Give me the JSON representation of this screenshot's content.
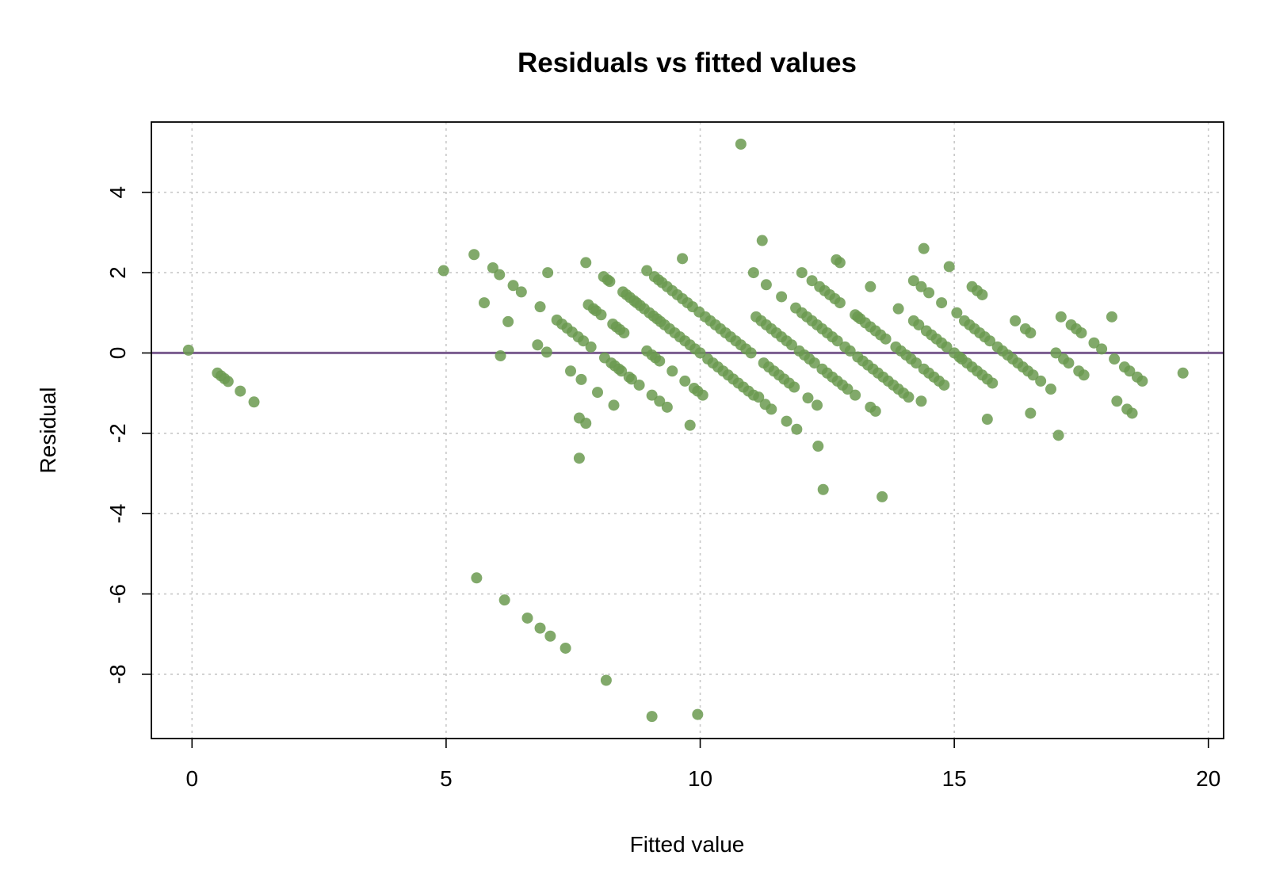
{
  "chart_data": {
    "type": "scatter",
    "title": "Residuals vs fitted values",
    "xlabel": "Fitted value",
    "ylabel": "Residual",
    "xlim": [
      -0.8,
      20.3
    ],
    "ylim": [
      -9.6,
      5.75
    ],
    "xticks": [
      0,
      5,
      10,
      15,
      20
    ],
    "yticks": [
      -8,
      -6,
      -4,
      -2,
      0,
      2,
      4
    ],
    "grid": true,
    "point_color": "#6b9a50",
    "reference_line": {
      "y": 0,
      "color": "#7a5c8f"
    },
    "points": [
      [
        -0.07,
        0.07
      ],
      [
        0.5,
        -0.5
      ],
      [
        0.57,
        -0.57
      ],
      [
        0.64,
        -0.64
      ],
      [
        0.71,
        -0.71
      ],
      [
        0.95,
        -0.95
      ],
      [
        1.22,
        -1.22
      ],
      [
        4.95,
        2.05
      ],
      [
        5.55,
        2.45
      ],
      [
        5.75,
        1.25
      ],
      [
        5.92,
        2.12
      ],
      [
        6.05,
        1.95
      ],
      [
        6.07,
        -0.07
      ],
      [
        6.22,
        0.78
      ],
      [
        6.32,
        1.68
      ],
      [
        6.48,
        1.52
      ],
      [
        6.8,
        0.2
      ],
      [
        6.85,
        1.15
      ],
      [
        6.98,
        0.02
      ],
      [
        7.0,
        2.0
      ],
      [
        7.18,
        0.82
      ],
      [
        7.28,
        0.72
      ],
      [
        7.38,
        0.62
      ],
      [
        7.45,
        -0.45
      ],
      [
        7.48,
        0.52
      ],
      [
        7.6,
        0.4
      ],
      [
        7.62,
        -1.62
      ],
      [
        7.62,
        -2.62
      ],
      [
        7.66,
        -0.66
      ],
      [
        7.7,
        0.3
      ],
      [
        7.75,
        2.25
      ],
      [
        7.75,
        -1.75
      ],
      [
        7.8,
        1.2
      ],
      [
        7.85,
        0.15
      ],
      [
        7.9,
        1.1
      ],
      [
        7.95,
        1.05
      ],
      [
        7.98,
        -0.98
      ],
      [
        8.05,
        0.95
      ],
      [
        8.1,
        1.9
      ],
      [
        8.12,
        -0.12
      ],
      [
        8.18,
        1.82
      ],
      [
        8.22,
        1.78
      ],
      [
        8.25,
        -0.25
      ],
      [
        8.28,
        0.72
      ],
      [
        8.3,
        -1.3
      ],
      [
        8.32,
        -0.32
      ],
      [
        8.35,
        0.65
      ],
      [
        8.4,
        -0.4
      ],
      [
        8.42,
        0.58
      ],
      [
        8.45,
        -0.45
      ],
      [
        8.48,
        1.52
      ],
      [
        8.5,
        0.5
      ],
      [
        8.55,
        1.45
      ],
      [
        8.6,
        -0.6
      ],
      [
        8.62,
        1.38
      ],
      [
        8.65,
        -0.65
      ],
      [
        8.7,
        1.3
      ],
      [
        8.75,
        1.25
      ],
      [
        8.8,
        -0.8
      ],
      [
        8.82,
        1.18
      ],
      [
        8.9,
        1.1
      ],
      [
        8.95,
        2.05
      ],
      [
        8.95,
        0.05
      ],
      [
        9.0,
        1.0
      ],
      [
        9.05,
        -1.05
      ],
      [
        9.05,
        -0.05
      ],
      [
        9.08,
        0.92
      ],
      [
        9.1,
        1.9
      ],
      [
        9.12,
        -0.12
      ],
      [
        9.15,
        0.85
      ],
      [
        9.18,
        1.82
      ],
      [
        9.2,
        -0.2
      ],
      [
        9.2,
        -1.2
      ],
      [
        9.22,
        0.78
      ],
      [
        9.25,
        1.75
      ],
      [
        9.3,
        0.7
      ],
      [
        9.35,
        1.65
      ],
      [
        9.35,
        -1.35
      ],
      [
        9.4,
        0.6
      ],
      [
        9.45,
        -0.45
      ],
      [
        9.45,
        1.55
      ],
      [
        9.5,
        0.5
      ],
      [
        9.55,
        1.45
      ],
      [
        9.6,
        0.4
      ],
      [
        9.65,
        2.35
      ],
      [
        9.65,
        1.35
      ],
      [
        9.7,
        0.3
      ],
      [
        9.7,
        -0.7
      ],
      [
        9.75,
        1.25
      ],
      [
        9.8,
        -1.8
      ],
      [
        9.8,
        0.2
      ],
      [
        9.85,
        1.15
      ],
      [
        9.88,
        -0.88
      ],
      [
        9.9,
        0.1
      ],
      [
        9.95,
        -0.95
      ],
      [
        9.95,
        -9.0
      ],
      [
        9.98,
        1.02
      ],
      [
        10.0,
        0.0
      ],
      [
        10.05,
        -1.05
      ],
      [
        10.1,
        0.9
      ],
      [
        10.15,
        -0.15
      ],
      [
        10.2,
        0.8
      ],
      [
        10.25,
        -0.25
      ],
      [
        10.3,
        0.7
      ],
      [
        10.35,
        -0.35
      ],
      [
        10.4,
        0.6
      ],
      [
        10.45,
        -0.45
      ],
      [
        10.5,
        0.5
      ],
      [
        10.55,
        -0.55
      ],
      [
        10.6,
        0.4
      ],
      [
        10.65,
        -0.65
      ],
      [
        10.7,
        0.3
      ],
      [
        10.75,
        -0.75
      ],
      [
        10.8,
        0.2
      ],
      [
        10.8,
        5.2
      ],
      [
        10.85,
        -0.85
      ],
      [
        10.9,
        0.1
      ],
      [
        10.95,
        -0.95
      ],
      [
        11.0,
        0.0
      ],
      [
        11.05,
        2.0
      ],
      [
        11.05,
        -1.05
      ],
      [
        11.1,
        0.9
      ],
      [
        11.15,
        -1.1
      ],
      [
        11.2,
        0.8
      ],
      [
        11.22,
        2.8
      ],
      [
        11.25,
        -0.25
      ],
      [
        11.28,
        -1.28
      ],
      [
        11.3,
        0.7
      ],
      [
        11.3,
        1.7
      ],
      [
        11.35,
        -0.35
      ],
      [
        11.4,
        0.6
      ],
      [
        11.4,
        -1.4
      ],
      [
        11.45,
        -0.45
      ],
      [
        11.5,
        0.5
      ],
      [
        11.55,
        -0.55
      ],
      [
        11.6,
        0.4
      ],
      [
        11.6,
        1.4
      ],
      [
        11.65,
        -0.65
      ],
      [
        11.7,
        0.3
      ],
      [
        11.7,
        -1.7
      ],
      [
        11.75,
        -0.75
      ],
      [
        11.8,
        0.2
      ],
      [
        11.85,
        -0.85
      ],
      [
        11.88,
        1.12
      ],
      [
        11.9,
        -1.9
      ],
      [
        11.95,
        0.05
      ],
      [
        12.0,
        2.0
      ],
      [
        12.0,
        1.0
      ],
      [
        12.05,
        -0.05
      ],
      [
        12.1,
        0.9
      ],
      [
        12.12,
        -1.12
      ],
      [
        12.15,
        -0.15
      ],
      [
        12.2,
        1.8
      ],
      [
        12.2,
        0.8
      ],
      [
        12.25,
        -0.25
      ],
      [
        12.3,
        -1.3
      ],
      [
        12.3,
        0.7
      ],
      [
        12.32,
        -2.32
      ],
      [
        12.35,
        1.65
      ],
      [
        12.4,
        -0.4
      ],
      [
        12.4,
        0.6
      ],
      [
        12.42,
        -3.4
      ],
      [
        12.45,
        1.55
      ],
      [
        12.5,
        -0.5
      ],
      [
        12.5,
        0.5
      ],
      [
        12.55,
        1.45
      ],
      [
        12.6,
        -0.6
      ],
      [
        12.6,
        0.4
      ],
      [
        12.65,
        1.35
      ],
      [
        12.68,
        2.32
      ],
      [
        12.7,
        -0.7
      ],
      [
        12.7,
        0.3
      ],
      [
        12.75,
        2.25
      ],
      [
        12.75,
        1.25
      ],
      [
        12.8,
        -0.8
      ],
      [
        12.85,
        0.15
      ],
      [
        12.9,
        -0.9
      ],
      [
        12.95,
        0.05
      ],
      [
        13.05,
        -1.05
      ],
      [
        13.05,
        0.95
      ],
      [
        13.1,
        -0.1
      ],
      [
        13.1,
        0.9
      ],
      [
        13.15,
        0.85
      ],
      [
        13.2,
        -0.2
      ],
      [
        13.25,
        0.75
      ],
      [
        13.3,
        -0.3
      ],
      [
        13.35,
        0.65
      ],
      [
        13.35,
        -1.35
      ],
      [
        13.35,
        1.65
      ],
      [
        13.4,
        -0.4
      ],
      [
        13.45,
        0.55
      ],
      [
        13.45,
        -1.45
      ],
      [
        13.5,
        -0.5
      ],
      [
        13.55,
        0.45
      ],
      [
        13.58,
        -3.58
      ],
      [
        13.6,
        -0.6
      ],
      [
        13.65,
        0.35
      ],
      [
        13.7,
        -0.7
      ],
      [
        13.8,
        -0.8
      ],
      [
        13.85,
        0.15
      ],
      [
        13.9,
        1.1
      ],
      [
        13.9,
        -0.9
      ],
      [
        13.95,
        0.05
      ],
      [
        14.0,
        -1.0
      ],
      [
        14.05,
        -0.05
      ],
      [
        14.1,
        -1.1
      ],
      [
        14.15,
        -0.15
      ],
      [
        14.2,
        0.8
      ],
      [
        14.2,
        1.8
      ],
      [
        14.25,
        -0.25
      ],
      [
        14.3,
        0.7
      ],
      [
        14.35,
        -1.2
      ],
      [
        14.35,
        1.65
      ],
      [
        14.4,
        -0.4
      ],
      [
        14.4,
        2.6
      ],
      [
        14.45,
        0.55
      ],
      [
        14.5,
        -0.5
      ],
      [
        14.5,
        1.5
      ],
      [
        14.55,
        0.45
      ],
      [
        14.6,
        -0.6
      ],
      [
        14.65,
        0.35
      ],
      [
        14.7,
        -0.7
      ],
      [
        14.75,
        1.25
      ],
      [
        14.75,
        0.25
      ],
      [
        14.8,
        -0.8
      ],
      [
        14.85,
        0.15
      ],
      [
        14.9,
        2.15
      ],
      [
        15.0,
        0.0
      ],
      [
        15.05,
        1.0
      ],
      [
        15.1,
        -0.1
      ],
      [
        15.15,
        -0.15
      ],
      [
        15.2,
        0.8
      ],
      [
        15.25,
        -0.25
      ],
      [
        15.3,
        0.7
      ],
      [
        15.35,
        1.65
      ],
      [
        15.35,
        -0.35
      ],
      [
        15.4,
        0.6
      ],
      [
        15.45,
        -0.45
      ],
      [
        15.45,
        1.55
      ],
      [
        15.5,
        0.5
      ],
      [
        15.55,
        -0.55
      ],
      [
        15.55,
        1.45
      ],
      [
        15.6,
        0.4
      ],
      [
        15.65,
        -0.65
      ],
      [
        15.65,
        -1.65
      ],
      [
        15.7,
        0.3
      ],
      [
        15.75,
        -0.75
      ],
      [
        15.85,
        0.15
      ],
      [
        15.95,
        0.05
      ],
      [
        16.05,
        -0.05
      ],
      [
        16.15,
        -0.15
      ],
      [
        16.2,
        0.8
      ],
      [
        16.25,
        -0.25
      ],
      [
        16.35,
        -0.35
      ],
      [
        16.4,
        0.6
      ],
      [
        16.45,
        -0.45
      ],
      [
        16.5,
        0.5
      ],
      [
        16.5,
        -1.5
      ],
      [
        16.55,
        -0.55
      ],
      [
        16.7,
        -0.7
      ],
      [
        16.9,
        -0.9
      ],
      [
        17.0,
        0.0
      ],
      [
        17.05,
        -2.05
      ],
      [
        17.1,
        0.9
      ],
      [
        17.15,
        -0.15
      ],
      [
        17.25,
        -0.25
      ],
      [
        17.3,
        0.7
      ],
      [
        17.4,
        0.6
      ],
      [
        17.45,
        -0.45
      ],
      [
        17.5,
        0.5
      ],
      [
        17.55,
        -0.55
      ],
      [
        17.75,
        0.25
      ],
      [
        17.9,
        0.1
      ],
      [
        18.1,
        0.9
      ],
      [
        18.15,
        -0.15
      ],
      [
        18.2,
        -1.2
      ],
      [
        18.35,
        -0.35
      ],
      [
        18.4,
        -1.4
      ],
      [
        18.45,
        -0.45
      ],
      [
        18.5,
        -1.5
      ],
      [
        18.6,
        -0.6
      ],
      [
        18.7,
        -0.7
      ],
      [
        19.5,
        -0.5
      ],
      [
        5.6,
        -5.6
      ],
      [
        6.15,
        -6.15
      ],
      [
        6.6,
        -6.6
      ],
      [
        6.85,
        -6.85
      ],
      [
        7.05,
        -7.05
      ],
      [
        7.35,
        -7.35
      ],
      [
        8.15,
        -8.15
      ],
      [
        9.05,
        -9.05
      ]
    ]
  }
}
